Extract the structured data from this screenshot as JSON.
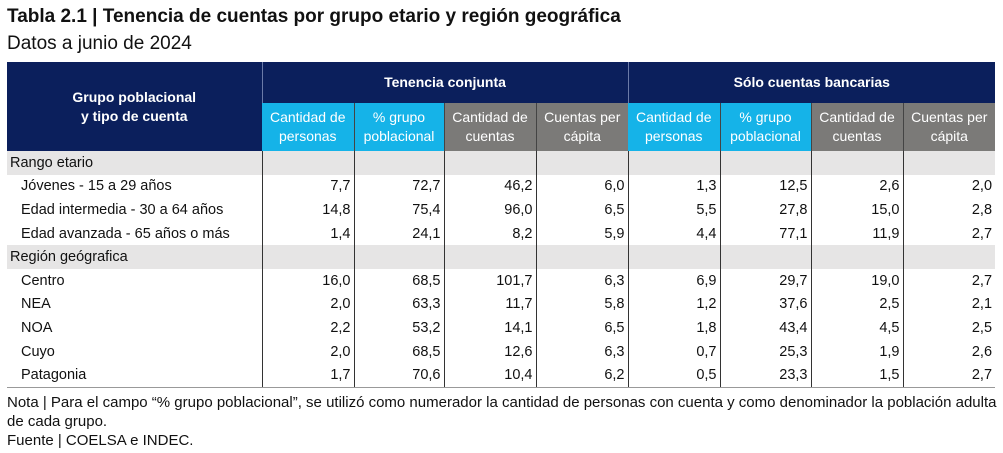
{
  "title": "Tabla 2.1 | Tenencia de cuentas por grupo etario y región geográfica",
  "subtitle": "Datos a junio de 2024",
  "header": {
    "row_label": "Grupo poblacional y tipo de cuenta",
    "group1": "Tenencia conjunta",
    "group2": "Sólo cuentas bancarias",
    "columns": [
      "Cantidad de personas",
      "% grupo poblacional",
      "Cantidad de cuentas",
      "Cuentas per cápita",
      "Cantidad de personas",
      "% grupo poblacional",
      "Cantidad de cuentas",
      "Cuentas per cápita"
    ]
  },
  "rows": [
    {
      "label": "Rango etario",
      "category": true,
      "values": [
        "",
        "",
        "",
        "",
        "",
        "",
        "",
        ""
      ]
    },
    {
      "label": "Jóvenes - 15 a 29 años",
      "values": [
        "7,7",
        "72,7",
        "46,2",
        "6,0",
        "1,3",
        "12,5",
        "2,6",
        "2,0"
      ]
    },
    {
      "label": "Edad intermedia - 30 a 64 años",
      "values": [
        "14,8",
        "75,4",
        "96,0",
        "6,5",
        "5,5",
        "27,8",
        "15,0",
        "2,8"
      ]
    },
    {
      "label": "Edad avanzada - 65 años o más",
      "values": [
        "1,4",
        "24,1",
        "8,2",
        "5,9",
        "4,4",
        "77,1",
        "11,9",
        "2,7"
      ]
    },
    {
      "label": "Región geógrafica",
      "category": true,
      "values": [
        "",
        "",
        "",
        "",
        "",
        "",
        "",
        ""
      ]
    },
    {
      "label": "Centro",
      "values": [
        "16,0",
        "68,5",
        "101,7",
        "6,3",
        "6,9",
        "29,7",
        "19,0",
        "2,7"
      ]
    },
    {
      "label": "NEA",
      "values": [
        "2,0",
        "63,3",
        "11,7",
        "5,8",
        "1,2",
        "37,6",
        "2,5",
        "2,1"
      ]
    },
    {
      "label": "NOA",
      "values": [
        "2,2",
        "53,2",
        "14,1",
        "6,5",
        "1,8",
        "43,4",
        "4,5",
        "2,5"
      ]
    },
    {
      "label": "Cuyo",
      "values": [
        "2,0",
        "68,5",
        "12,6",
        "6,3",
        "0,7",
        "25,3",
        "1,9",
        "2,6"
      ]
    },
    {
      "label": "Patagonia",
      "values": [
        "1,7",
        "70,6",
        "10,4",
        "6,2",
        "0,5",
        "23,3",
        "1,5",
        "2,7"
      ]
    }
  ],
  "note": "Nota | Para el campo “% grupo poblacional”, se utilizó como numerador la cantidad de personas con cuenta y como denominador la población adulta de cada grupo.",
  "source": "Fuente | COELSA e INDEC.",
  "colors": {
    "header": "#0b1f5c",
    "cyan": "#15b3e8",
    "gray": "#7b7a78",
    "category_row": "#e6e5e5"
  }
}
